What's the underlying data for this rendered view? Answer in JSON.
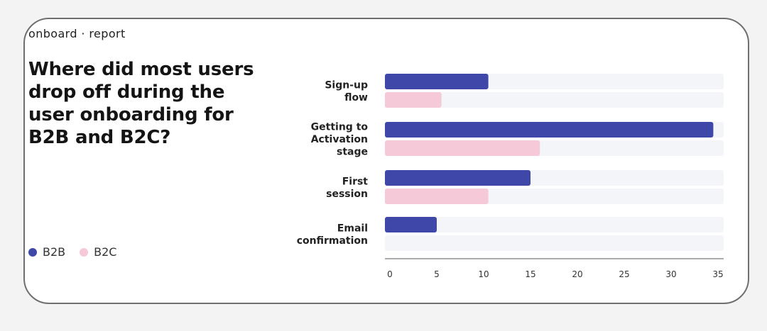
{
  "header": {
    "brand": "onboard · report",
    "title": "Where did most users drop off during the user onboarding for B2B and B2C?"
  },
  "legend": [
    {
      "label": "B2B",
      "color": "#3f47a8"
    },
    {
      "label": "B2C",
      "color": "#f6c9d8"
    }
  ],
  "chart_data": {
    "type": "bar",
    "orientation": "horizontal",
    "title": "Where did most users drop off during the user onboarding for B2B and B2C?",
    "categories": [
      [
        "Sign-up",
        "flow"
      ],
      [
        "Getting to",
        "Activation",
        "stage"
      ],
      [
        "First",
        "session"
      ],
      [
        "Email",
        "confirmation"
      ]
    ],
    "series": [
      {
        "name": "B2B",
        "color": "#3f47a8",
        "values": [
          10.5,
          34.5,
          15.0,
          5.0
        ]
      },
      {
        "name": "B2C",
        "color": "#f6c9d8",
        "values": [
          5.5,
          16.0,
          10.5,
          0
        ]
      }
    ],
    "xlim": [
      0,
      35
    ],
    "xticks": [
      0,
      5,
      10,
      15,
      20,
      25,
      30,
      35
    ],
    "track_color": "#f3f5f8",
    "grid": false,
    "legend_position": "bottom-left"
  }
}
